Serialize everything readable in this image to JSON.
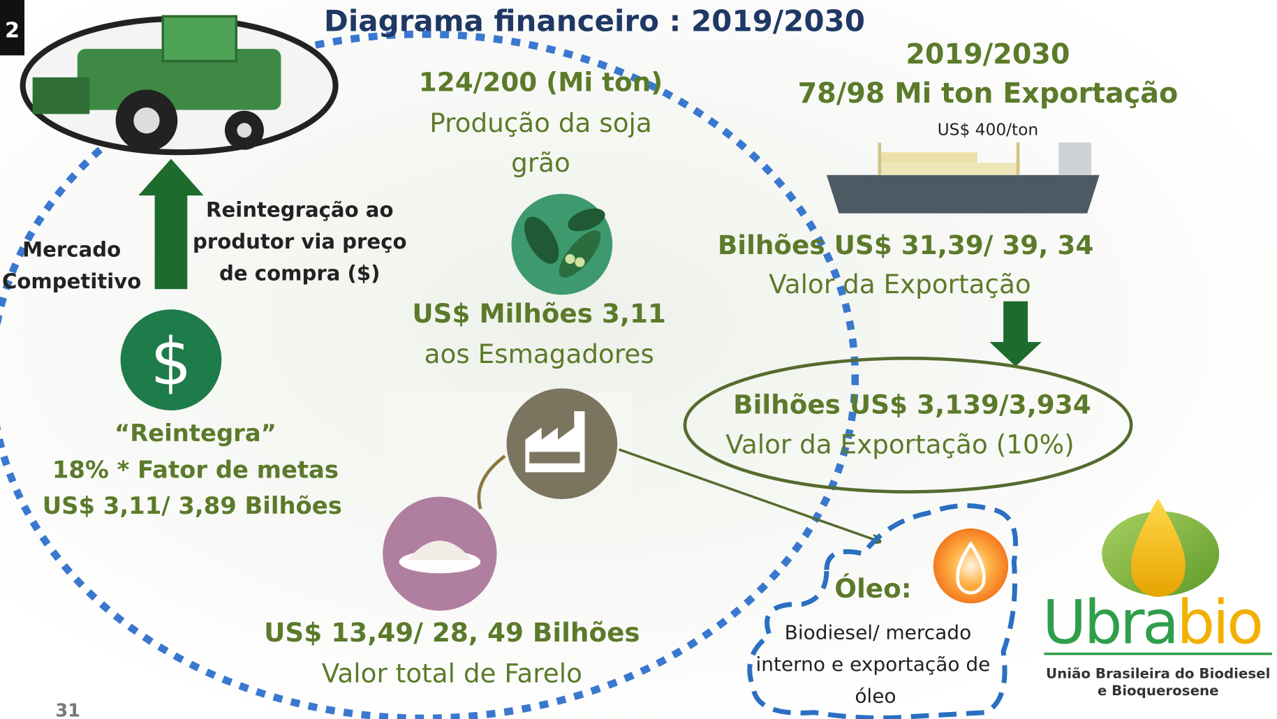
{
  "badge": "2",
  "title": "Diagrama financeiro : 2019/2030",
  "production": {
    "line1": "124/200 (Mi ton)",
    "line2": "Produção da soja",
    "line3": "grão"
  },
  "crushers": {
    "line1": "US$  Milhões  3,11",
    "line2": "aos Esmagadores"
  },
  "export_header": {
    "line1": "2019/2030",
    "line2": "78/98 Mi ton Exportação",
    "price": "US$ 400/ton"
  },
  "export_value": {
    "line1": "Bilhões  US$ 31,39/ 39, 34",
    "line2": "Valor da Exportação"
  },
  "export_share": {
    "line1": "Bilhões   US$ 3,139/3,934",
    "line2": "Valor da   Exportação (10%)"
  },
  "reintegration": {
    "line1": "Reintegração ao",
    "line2": "produtor via preço",
    "line3": "de compra ($)"
  },
  "market": {
    "line1": "Mercado",
    "line2": "Competitivo"
  },
  "dollar_icon": "$",
  "reintegra": {
    "line1": "“Reintegra”",
    "line2": "18% *  Fator de metas",
    "line3": "US$  3,11/ 3,89 Bilhões"
  },
  "farelo": {
    "line1": "US$ 13,49/ 28, 49 Bilhões",
    "line2": "Valor total de Farelo"
  },
  "oleo": {
    "title": "Óleo:",
    "line1": "Biodiesel/ mercado",
    "line2": "interno e exportação de",
    "line3": "óleo"
  },
  "logo": {
    "ubra": "Ubra",
    "bio": "bio",
    "line1": "União Brasileira do Biodiesel",
    "line2": "e Bioquerosene"
  },
  "page_number": "31"
}
